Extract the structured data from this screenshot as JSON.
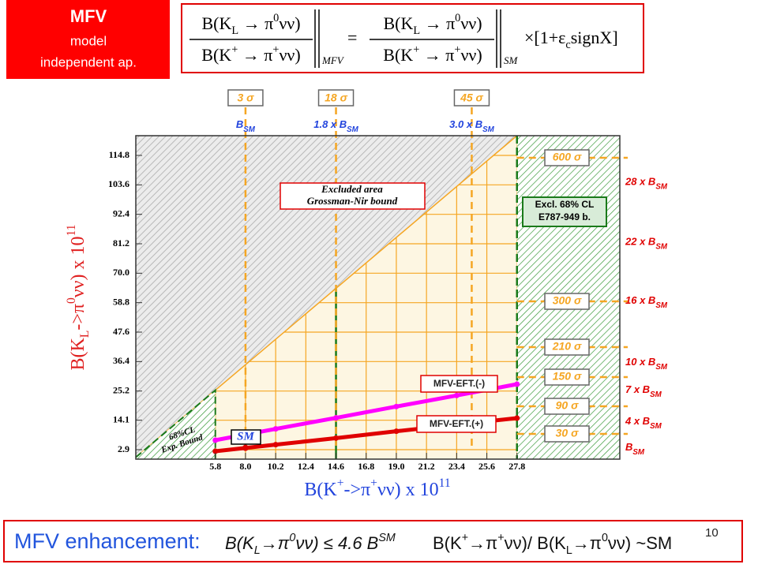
{
  "header": {
    "title": "MFV",
    "lines": [
      "model",
      "independent ap."
    ]
  },
  "formula": {
    "numerator": [
      "B(K",
      "L",
      " → π",
      "0",
      "νν)"
    ],
    "denominator": [
      "B(K",
      "+",
      " → π",
      "+",
      "νν)"
    ],
    "mfv": "MFV",
    "equals": "=",
    "sm": "SM",
    "factor": [
      "×[1+ε",
      "c",
      "signX",
      "]"
    ]
  },
  "chart_data": {
    "type": "line",
    "x_label": [
      "B(K",
      "+",
      "->π",
      "+",
      "νν) x 10",
      "11"
    ],
    "y_label": [
      "B(K",
      "L",
      "->π",
      "0",
      "νν) x 10",
      "11"
    ],
    "xlim": [
      0,
      35.3
    ],
    "ylim": [
      -0.7,
      122.3
    ],
    "xticks": [
      5.8,
      {
        "value": 8,
        "label": "8.0"
      },
      10.2,
      12.4,
      14.6,
      16.8,
      {
        "value": 19,
        "label": "19.0"
      },
      21.2,
      23.4,
      25.6,
      27.8
    ],
    "yticks": [
      2.9,
      14.1,
      25.2,
      36.4,
      47.6,
      58.8,
      {
        "value": 70,
        "label": "70.0"
      },
      81.2,
      92.4,
      103.6,
      114.8
    ],
    "grid": true,
    "series": [
      {
        "name": "MFV-EFT.(-)",
        "color": "#ff00ff",
        "x": [
          5.8,
          10.2,
          14.6,
          19.0,
          23.4,
          27.8
        ],
        "values": [
          6.5,
          10.8,
          15.0,
          19.3,
          23.5,
          27.8
        ]
      },
      {
        "name": "MFV-EFT.(+)",
        "color": "#e00000",
        "x": [
          5.8,
          10.2,
          14.6,
          19.0,
          23.4,
          27.8
        ],
        "values": [
          2.3,
          4.8,
          7.3,
          9.9,
          12.4,
          14.9
        ]
      }
    ],
    "sm_point": {
      "label": "SM",
      "x": 8.0,
      "y": 3.6
    },
    "bound": {
      "slope": 4.4,
      "label": [
        "Excluded  area",
        "Grossman-Nir bound"
      ]
    },
    "exp_bound": {
      "x": 5.8,
      "label": [
        "68%CL",
        "Exp. Bound"
      ]
    },
    "excl": {
      "x": 27.8,
      "label": [
        "Excl.  68% CL",
        "E787-949 b."
      ]
    },
    "vlines": [
      {
        "x": 8.0,
        "text": "B",
        "sub": "SM",
        "sigma": "3 σ"
      },
      {
        "x": 14.6,
        "text": "1.8 x B",
        "sub": "SM",
        "sigma": "18 σ",
        "highlight": true
      },
      {
        "x": 24.5,
        "text": "3.0 x B",
        "sub": "SM",
        "sigma": "45 σ"
      }
    ],
    "hlines": [
      {
        "y": 113.9,
        "sigma": "600 σ"
      },
      {
        "y": 59.3,
        "sigma": "300 σ"
      },
      {
        "y": 41.9,
        "sigma": "210 σ"
      },
      {
        "y": 30.5,
        "sigma": "150 σ"
      },
      {
        "y": 19.4,
        "sigma": "90 σ"
      },
      {
        "y": 8.9,
        "sigma": "30 σ"
      }
    ],
    "right_labels": [
      {
        "y": 104.4,
        "text": "28 x B",
        "sub": "SM"
      },
      {
        "y": 81.6,
        "text": "22 x B",
        "sub": "SM"
      },
      {
        "y": 59.3,
        "text": "16 x B",
        "sub": "SM"
      },
      {
        "y": 35.9,
        "text": "10 x B",
        "sub": "SM"
      },
      {
        "y": 25.4,
        "text": "7 x B",
        "sub": "SM"
      },
      {
        "y": 13.4,
        "text": "4 x B",
        "sub": "SM"
      },
      {
        "y": 3.5,
        "text": "B",
        "sub": "SM"
      }
    ]
  },
  "bottom": {
    "enhancement": "MFV enhancement:",
    "bound": [
      "B(K",
      "L",
      "→π",
      "0",
      "νν)  ≤ 4.6 B",
      "SM"
    ],
    "ratio": [
      "B(K",
      "+",
      "→π",
      "+",
      "νν)/ B(K",
      "L",
      "→π",
      "0",
      "νν) ~SM"
    ],
    "page_number": "10"
  }
}
